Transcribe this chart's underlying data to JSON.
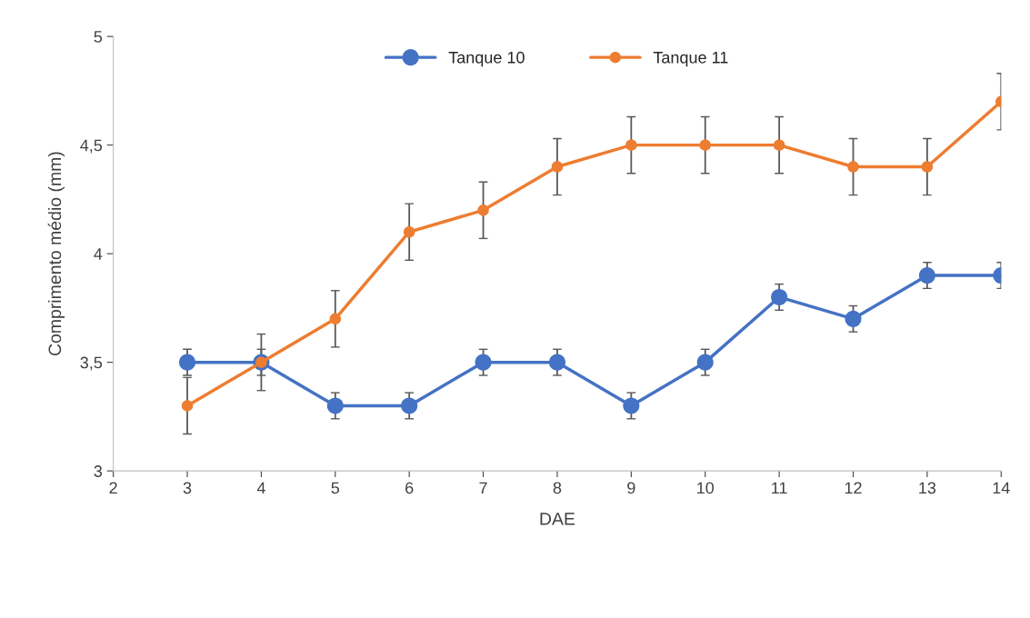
{
  "chart_data": {
    "type": "line",
    "xlabel": "DAE",
    "ylabel": "Comprimento médio (mm)",
    "x": [
      3,
      4,
      5,
      6,
      7,
      8,
      9,
      10,
      11,
      12,
      13,
      14
    ],
    "series": [
      {
        "name": "Tanque 10",
        "color": "#4472c4",
        "values": [
          3.5,
          3.5,
          3.3,
          3.3,
          3.5,
          3.5,
          3.3,
          3.5,
          3.8,
          3.7,
          3.9,
          3.9
        ],
        "errors": [
          0.06,
          0.06,
          0.06,
          0.06,
          0.06,
          0.06,
          0.06,
          0.06,
          0.06,
          0.06,
          0.06,
          0.06
        ]
      },
      {
        "name": "Tanque 11",
        "color": "#ed7d31",
        "values": [
          3.3,
          3.5,
          3.7,
          4.1,
          4.2,
          4.4,
          4.5,
          4.5,
          4.5,
          4.4,
          4.4,
          4.7
        ],
        "errors": [
          0.13,
          0.13,
          0.13,
          0.13,
          0.13,
          0.13,
          0.13,
          0.13,
          0.13,
          0.13,
          0.13,
          0.13
        ]
      }
    ],
    "xlim": [
      2,
      14
    ],
    "xticks": [
      2,
      3,
      4,
      5,
      6,
      7,
      8,
      9,
      10,
      11,
      12,
      13,
      14
    ],
    "ylim": [
      3,
      5
    ],
    "yticks": [
      3,
      {
        "value": 3.5,
        "label": "3,5"
      },
      4,
      {
        "value": 4.5,
        "label": "4,5"
      },
      5
    ],
    "marker": "circle",
    "line_style": "solid",
    "grid": false,
    "legend": "top"
  }
}
